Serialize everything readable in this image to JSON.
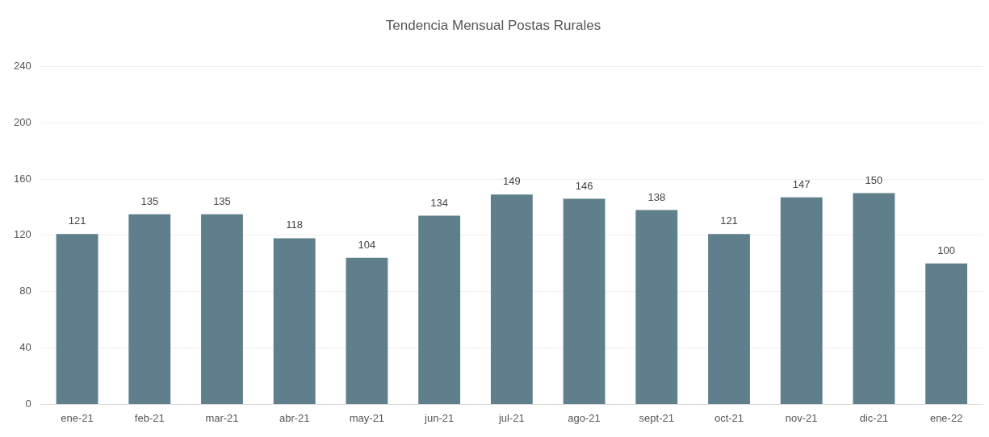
{
  "chart_data": {
    "type": "bar",
    "title": "Tendencia Mensual Postas Rurales",
    "categories": [
      "ene-21",
      "feb-21",
      "mar-21",
      "abr-21",
      "may-21",
      "jun-21",
      "jul-21",
      "ago-21",
      "sept-21",
      "oct-21",
      "nov-21",
      "dic-21",
      "ene-22"
    ],
    "values": [
      121,
      135,
      135,
      118,
      104,
      134,
      149,
      146,
      138,
      121,
      147,
      150,
      100
    ],
    "color": "#5f7f8c",
    "ylim": [
      0,
      240
    ],
    "yticks": [
      0,
      40,
      80,
      120,
      160,
      200,
      240
    ],
    "grid": "y",
    "data_labels": true
  }
}
